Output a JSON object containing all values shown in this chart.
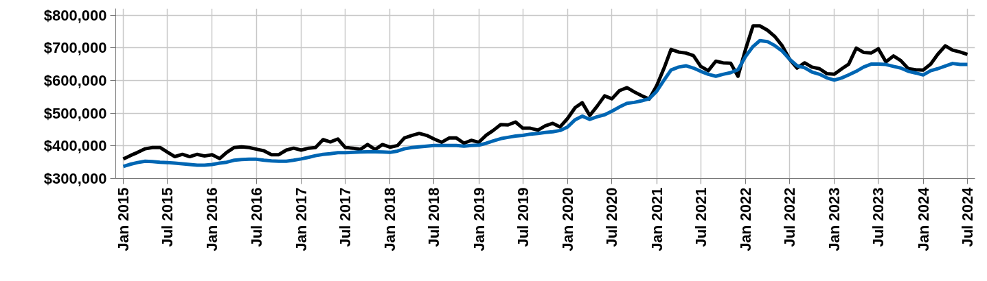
{
  "chart_data": {
    "type": "line",
    "x": [
      "2015-01",
      "2015-02",
      "2015-03",
      "2015-04",
      "2015-05",
      "2015-06",
      "2015-07",
      "2015-08",
      "2015-09",
      "2015-10",
      "2015-11",
      "2015-12",
      "2016-01",
      "2016-02",
      "2016-03",
      "2016-04",
      "2016-05",
      "2016-06",
      "2016-07",
      "2016-08",
      "2016-09",
      "2016-10",
      "2016-11",
      "2016-12",
      "2017-01",
      "2017-02",
      "2017-03",
      "2017-04",
      "2017-05",
      "2017-06",
      "2017-07",
      "2017-08",
      "2017-09",
      "2017-10",
      "2017-11",
      "2017-12",
      "2018-01",
      "2018-02",
      "2018-03",
      "2018-04",
      "2018-05",
      "2018-06",
      "2018-07",
      "2018-08",
      "2018-09",
      "2018-10",
      "2018-11",
      "2018-12",
      "2019-01",
      "2019-02",
      "2019-03",
      "2019-04",
      "2019-05",
      "2019-06",
      "2019-07",
      "2019-08",
      "2019-09",
      "2019-10",
      "2019-11",
      "2019-12",
      "2020-01",
      "2020-02",
      "2020-03",
      "2020-04",
      "2020-05",
      "2020-06",
      "2020-07",
      "2020-08",
      "2020-09",
      "2020-10",
      "2020-11",
      "2020-12",
      "2021-01",
      "2021-02",
      "2021-03",
      "2021-04",
      "2021-05",
      "2021-06",
      "2021-07",
      "2021-08",
      "2021-09",
      "2021-10",
      "2021-11",
      "2021-12",
      "2022-01",
      "2022-02",
      "2022-03",
      "2022-04",
      "2022-05",
      "2022-06",
      "2022-07",
      "2022-08",
      "2022-09",
      "2022-10",
      "2022-11",
      "2022-12",
      "2023-01",
      "2023-02",
      "2023-03",
      "2023-04",
      "2023-05",
      "2023-06",
      "2023-07",
      "2023-08",
      "2023-09",
      "2023-10",
      "2023-11",
      "2023-12",
      "2024-01",
      "2024-02",
      "2024-03",
      "2024-04",
      "2024-05",
      "2024-06",
      "2024-07"
    ],
    "series": [
      {
        "color": "#000000",
        "values": [
          360000,
          371000,
          380000,
          391000,
          395000,
          395000,
          381000,
          367000,
          374000,
          367000,
          374000,
          369000,
          373000,
          361000,
          380000,
          395000,
          397000,
          395000,
          390000,
          385000,
          373000,
          373000,
          387000,
          393000,
          387000,
          393000,
          395000,
          419000,
          412000,
          421000,
          395000,
          393000,
          389000,
          404000,
          389000,
          404000,
          396000,
          401000,
          424000,
          432000,
          438000,
          432000,
          421000,
          411000,
          424000,
          424000,
          408000,
          417000,
          411000,
          433000,
          447000,
          465000,
          464000,
          473000,
          454000,
          454000,
          448000,
          461000,
          469000,
          458000,
          484000,
          517000,
          532000,
          493000,
          521000,
          553000,
          544000,
          569000,
          578000,
          565000,
          553000,
          543000,
          584000,
          639000,
          695000,
          687000,
          684000,
          676000,
          643000,
          630000,
          659000,
          654000,
          653000,
          613000,
          695000,
          767000,
          767000,
          754000,
          735000,
          706000,
          665000,
          638000,
          654000,
          641000,
          636000,
          621000,
          619000,
          636000,
          650000,
          699000,
          686000,
          684000,
          697000,
          657000,
          675000,
          661000,
          636000,
          633000,
          632000,
          650000,
          680000,
          706000,
          693000,
          687000,
          680000
        ]
      },
      {
        "color": "#0066b3",
        "values": [
          337000,
          344000,
          349000,
          353000,
          352000,
          350000,
          349000,
          347000,
          345000,
          343000,
          341000,
          341000,
          343000,
          347000,
          350000,
          356000,
          358000,
          359000,
          359000,
          356000,
          354000,
          353000,
          353000,
          356000,
          360000,
          365000,
          370000,
          374000,
          376000,
          379000,
          379000,
          380000,
          381000,
          382000,
          382000,
          381000,
          380000,
          384000,
          391000,
          395000,
          397000,
          399000,
          401000,
          401000,
          401000,
          401000,
          399000,
          401000,
          402000,
          408000,
          415000,
          422000,
          426000,
          430000,
          432000,
          436000,
          438000,
          441000,
          443000,
          447000,
          458000,
          480000,
          491000,
          481000,
          489000,
          495000,
          506000,
          519000,
          530000,
          533000,
          538000,
          544000,
          567000,
          602000,
          632000,
          641000,
          645000,
          638000,
          628000,
          619000,
          613000,
          619000,
          624000,
          633000,
          673000,
          704000,
          722000,
          719000,
          707000,
          690000,
          665000,
          645000,
          639000,
          626000,
          619000,
          608000,
          601000,
          608000,
          617000,
          628000,
          641000,
          650000,
          650000,
          649000,
          643000,
          638000,
          628000,
          623000,
          617000,
          630000,
          636000,
          644000,
          652000,
          649000,
          649000
        ]
      }
    ],
    "xlim": [
      "2014-12",
      "2024-08"
    ],
    "xticks": [
      {
        "value": "2015-01",
        "label": "Jan 2015"
      },
      {
        "value": "2015-07",
        "label": "Jul 2015"
      },
      {
        "value": "2016-01",
        "label": "Jan 2016"
      },
      {
        "value": "2016-07",
        "label": "Jul 2016"
      },
      {
        "value": "2017-01",
        "label": "Jan 2017"
      },
      {
        "value": "2017-07",
        "label": "Jul 2017"
      },
      {
        "value": "2018-01",
        "label": "Jan 2018"
      },
      {
        "value": "2018-07",
        "label": "Jul 2018"
      },
      {
        "value": "2019-01",
        "label": "Jan 2019"
      },
      {
        "value": "2019-07",
        "label": "Jul 2019"
      },
      {
        "value": "2020-01",
        "label": "Jan 2020"
      },
      {
        "value": "2020-07",
        "label": "Jul 2020"
      },
      {
        "value": "2021-01",
        "label": "Jan 2021"
      },
      {
        "value": "2021-07",
        "label": "Jul 2021"
      },
      {
        "value": "2022-01",
        "label": "Jan 2022"
      },
      {
        "value": "2022-07",
        "label": "Jul 2022"
      },
      {
        "value": "2023-01",
        "label": "Jan 2023"
      },
      {
        "value": "2023-07",
        "label": "Jul 2023"
      },
      {
        "value": "2024-01",
        "label": "Jan 2024"
      },
      {
        "value": "2024-07",
        "label": "Jul 2024"
      }
    ],
    "ylim": [
      300000,
      820000
    ],
    "yticks": [
      {
        "value": 300000,
        "label": "$300,000"
      },
      {
        "value": 400000,
        "label": "$400,000"
      },
      {
        "value": 500000,
        "label": "$500,000"
      },
      {
        "value": 600000,
        "label": "$600,000"
      },
      {
        "value": 700000,
        "label": "$700,000"
      },
      {
        "value": 800000,
        "label": "$800,000"
      }
    ],
    "grid": true,
    "marker": "none",
    "line_style": "solid"
  }
}
